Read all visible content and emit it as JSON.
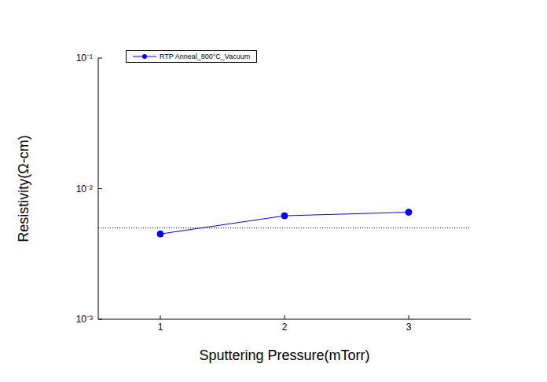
{
  "chart_data": {
    "type": "line",
    "x_label": "Sputtering Pressure(mTorr)",
    "y_label": "Resistivity(Ω-cm)",
    "log": "y",
    "grid": false,
    "legend": "upper left",
    "xlim": [
      0.5,
      3.5
    ],
    "xticks": [
      1,
      2,
      3
    ],
    "ylim": [
      0.001,
      0.1
    ],
    "yticks": [
      {
        "value": 0.001,
        "label": "10⁻³"
      },
      {
        "value": 0.01,
        "label": "10⁻²"
      },
      {
        "value": 0.1,
        "label": "10⁻¹"
      }
    ],
    "hline": 0.005,
    "series": [
      {
        "name": "RTP Anneal_800°C_Vacuum",
        "color": "#0000ff",
        "marker": "circle",
        "line_style": "solid",
        "x": [
          1,
          2,
          3
        ],
        "values": [
          0.0045,
          0.0062,
          0.0066
        ]
      }
    ]
  }
}
